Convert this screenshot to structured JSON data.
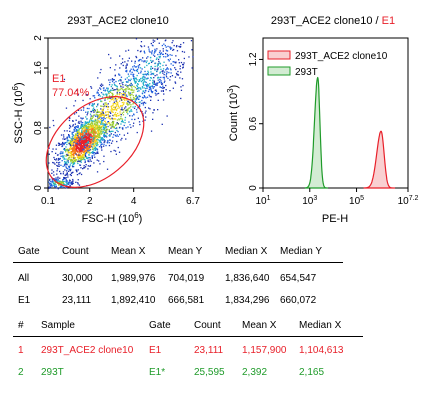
{
  "chart_data": [
    {
      "type": "scatter",
      "title": "293T_ACE2 clone10",
      "xlabel": "FSC-H",
      "xlabel_exp": "6",
      "ylabel": "SSC-H",
      "ylabel_exp": "6",
      "xlim": [
        0.1,
        6.7
      ],
      "ylim": [
        0,
        2
      ],
      "x_ticks": [
        {
          "value": 0.1,
          "label": "0.1"
        },
        {
          "value": 2,
          "label": "2"
        },
        {
          "value": 4,
          "label": "4"
        },
        {
          "value": 6.7,
          "label": "6.7"
        }
      ],
      "y_ticks": [
        {
          "value": 0,
          "label": "0"
        },
        {
          "value": 0.8,
          "label": "0.8"
        },
        {
          "value": 1.6,
          "label": "1.6"
        },
        {
          "value": 2,
          "label": "2"
        }
      ],
      "gate": {
        "name": "E1",
        "percent": "77.04%",
        "color": "#e8202a"
      },
      "density": "hot-cold color density plot"
    },
    {
      "type": "area",
      "title_main": "293T_ACE2 clone10 / ",
      "title_gate": "E1",
      "xlabel": "PE-H",
      "ylabel": "Count",
      "ylabel_exp": "3",
      "x_scale": "log",
      "xlim_log10": [
        1,
        7.2
      ],
      "ylim": [
        0,
        1.4
      ],
      "x_ticks": [
        {
          "exp": "1",
          "value": 1
        },
        {
          "exp": "3",
          "value": 3
        },
        {
          "exp": "5",
          "value": 5
        },
        {
          "exp": "7.2",
          "value": 7.2
        }
      ],
      "y_ticks": [
        {
          "value": 0,
          "label": "0"
        },
        {
          "value": 0.6,
          "label": "0.6"
        },
        {
          "value": 1.2,
          "label": "1.2"
        }
      ],
      "legend": "top",
      "series": [
        {
          "name": "293T_ACE2 clone10",
          "color": "#e8202a",
          "fill": "#f9d0d1",
          "peak_log10": 6.05,
          "width": 0.15,
          "peak_count": 0.53
        },
        {
          "name": "293T",
          "color": "#1f9b2a",
          "fill": "#d3ecd3",
          "peak_log10": 3.34,
          "width": 0.11,
          "peak_count": 1.03
        }
      ]
    }
  ],
  "gate_table": {
    "headers": [
      "Gate",
      "Count",
      "Mean X",
      "Mean Y",
      "Median X",
      "Median Y"
    ],
    "rows": [
      [
        "All",
        "30,000",
        "1,989,976",
        "704,019",
        "1,836,640",
        "654,547"
      ],
      [
        "E1",
        "23,111",
        "1,892,410",
        "666,581",
        "1,834,296",
        "660,072"
      ]
    ]
  },
  "sample_table": {
    "headers": [
      "#",
      "Sample",
      "Gate",
      "Count",
      "Mean X",
      "Median X"
    ],
    "rows": [
      {
        "cells": [
          "1",
          "293T_ACE2 clone10",
          "E1",
          "23,111",
          "1,157,900",
          "1,104,613"
        ],
        "color": "#e8202a"
      },
      {
        "cells": [
          "2",
          "293T",
          "E1*",
          "25,595",
          "2,392",
          "2,165"
        ],
        "color": "#1f9b2a"
      }
    ]
  }
}
